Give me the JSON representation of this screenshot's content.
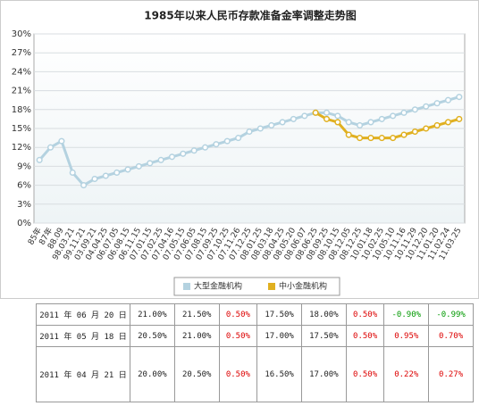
{
  "chart_data": {
    "type": "line",
    "title": "1985年以来人民币存款准备金率调整走势图",
    "categories": [
      "85年",
      "87年",
      "88.09",
      "98.03.21",
      "99.11.21",
      "03.09.21",
      "04.04.25",
      "06.07.05",
      "06.08.15",
      "06.11.15",
      "07.01.15",
      "07.02.25",
      "07.04.16",
      "07.05.15",
      "07.06.05",
      "07.08.15",
      "07.09.25",
      "07.10.25",
      "07.11.26",
      "07.12.25",
      "08.01.25",
      "08.03.18",
      "08.04.25",
      "08.05.20",
      "08.06.07",
      "08.06.25",
      "08.09.25",
      "08.10.15",
      "08.12.05",
      "08.12.25",
      "10.01.18",
      "10.02.25",
      "10.05.10",
      "10.11.16",
      "10.11.29",
      "10.12.20",
      "11.01.20",
      "11.02.24",
      "11.03.25"
    ],
    "series": [
      {
        "name": "大型金融机构",
        "color": "#b4d2e0",
        "values": [
          10,
          12,
          13,
          8,
          6,
          7,
          7.5,
          8,
          8.5,
          9,
          9.5,
          10,
          10.5,
          11,
          11.5,
          12,
          12.5,
          13,
          13.5,
          14.5,
          15,
          15.5,
          16,
          16.5,
          17,
          17.5,
          17.5,
          17,
          16,
          15.5,
          16,
          16.5,
          17,
          17.5,
          18,
          18.5,
          19,
          19.5,
          20
        ]
      },
      {
        "name": "中小金融机构",
        "color": "#e0b020",
        "values": [
          null,
          null,
          null,
          null,
          null,
          null,
          null,
          null,
          null,
          null,
          null,
          null,
          null,
          null,
          null,
          null,
          null,
          null,
          null,
          null,
          null,
          null,
          null,
          null,
          null,
          17.5,
          16.5,
          16,
          14,
          13.5,
          13.5,
          13.5,
          13.5,
          14,
          14.5,
          15,
          15.5,
          16,
          16.5
        ]
      }
    ],
    "ylim": [
      0,
      30
    ],
    "yticks": [
      {
        "value": 0,
        "label": "0%"
      },
      {
        "value": 3,
        "label": "3%"
      },
      {
        "value": 6,
        "label": "6%"
      },
      {
        "value": 9,
        "label": "9%"
      },
      {
        "value": 12,
        "label": "12%"
      },
      {
        "value": 15,
        "label": "15%"
      },
      {
        "value": 18,
        "label": "18%"
      },
      {
        "value": 21,
        "label": "21%"
      },
      {
        "value": 24,
        "label": "24%"
      },
      {
        "value": 27,
        "label": "27%"
      },
      {
        "value": 30,
        "label": "30%"
      }
    ],
    "grid": true
  },
  "table": {
    "rows": [
      [
        "2011 年 06 月 20 日",
        "21.00%",
        "21.50%",
        "0.50%",
        "17.50%",
        "18.00%",
        "0.50%",
        "-0.90%",
        "-0.99%"
      ],
      [
        "2011 年 05 月 18 日",
        "20.50%",
        "21.00%",
        "0.50%",
        "17.00%",
        "17.50%",
        "0.50%",
        "0.95%",
        "0.70%"
      ],
      [
        "2011 年 04 月 21 日",
        "20.00%",
        "20.50%",
        "0.50%",
        "16.50%",
        "17.00%",
        "0.50%",
        "0.22%",
        "0.27%"
      ]
    ]
  }
}
